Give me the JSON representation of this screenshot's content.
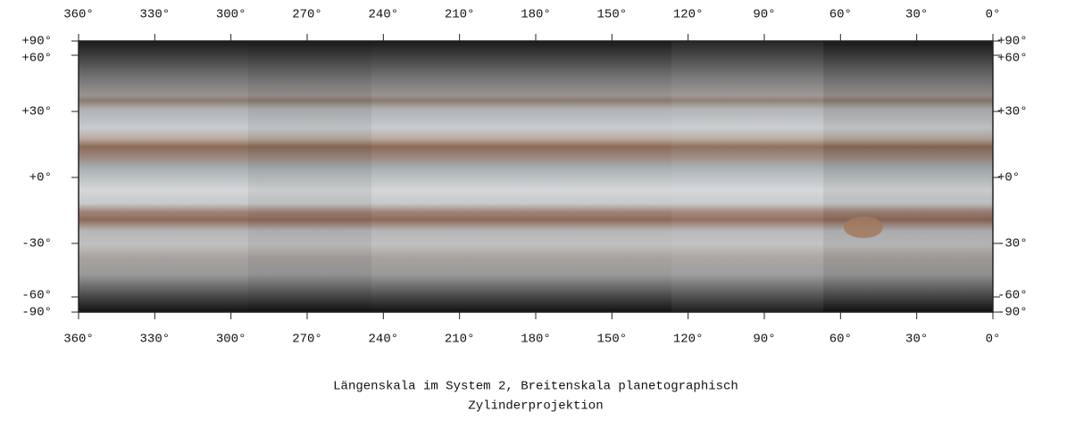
{
  "longitude_labels": [
    "360°",
    "330°",
    "300°",
    "270°",
    "240°",
    "210°",
    "180°",
    "150°",
    "120°",
    "90°",
    "60°",
    "30°",
    "0°"
  ],
  "latitude_labels": [
    "+90°",
    "+60°",
    "+30°",
    "+0°",
    "-30°",
    "-60°",
    "-90°"
  ],
  "caption": {
    "line1": "Längenskala im System 2, Breitenskala planetographisch",
    "line2": "Zylinderprojektion"
  }
}
